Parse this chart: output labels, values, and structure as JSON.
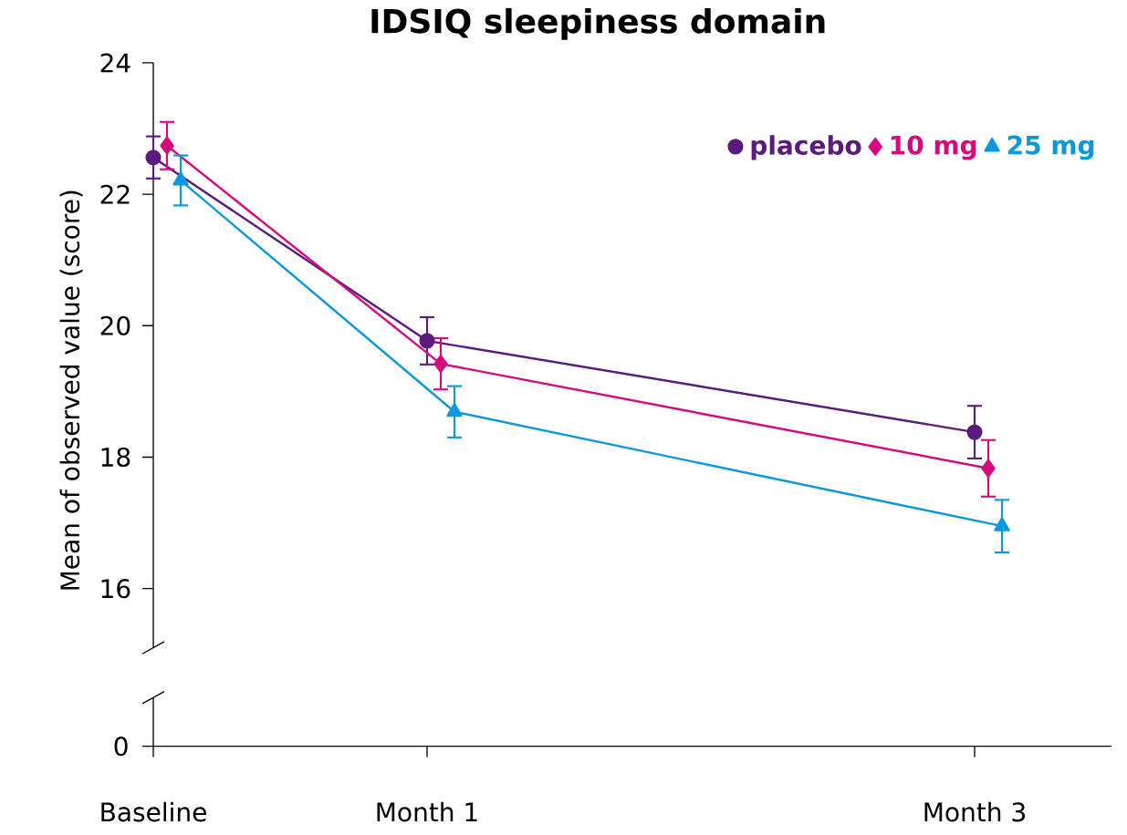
{
  "chart_data": {
    "type": "line",
    "title": "IDSIQ sleepiness domain",
    "ylabel": "Mean of observed value (score)",
    "categories": [
      "Baseline",
      "Month 1",
      null,
      "Month 3"
    ],
    "ylim": [
      15.1,
      24
    ],
    "yticks": [
      16,
      18,
      20,
      22,
      24
    ],
    "legend": "top right",
    "line_style": "solid",
    "annotations": [
      "0"
    ],
    "series": [
      {
        "name": "placebo",
        "color": "#5b1a7e",
        "marker": "circle",
        "values": [
          22.56,
          19.77,
          null,
          18.38
        ],
        "errors": [
          0.32,
          0.36,
          null,
          0.4
        ]
      },
      {
        "name": "10 mg",
        "color": "#d6097c",
        "marker": "diamond",
        "values": [
          22.74,
          19.42,
          null,
          17.83
        ],
        "errors": [
          0.36,
          0.39,
          null,
          0.43
        ]
      },
      {
        "name": "25 mg",
        "color": "#0a97dc",
        "marker": "triangle",
        "values": [
          22.21,
          18.69,
          null,
          16.95
        ],
        "errors": [
          0.38,
          0.39,
          null,
          0.4
        ]
      }
    ]
  }
}
